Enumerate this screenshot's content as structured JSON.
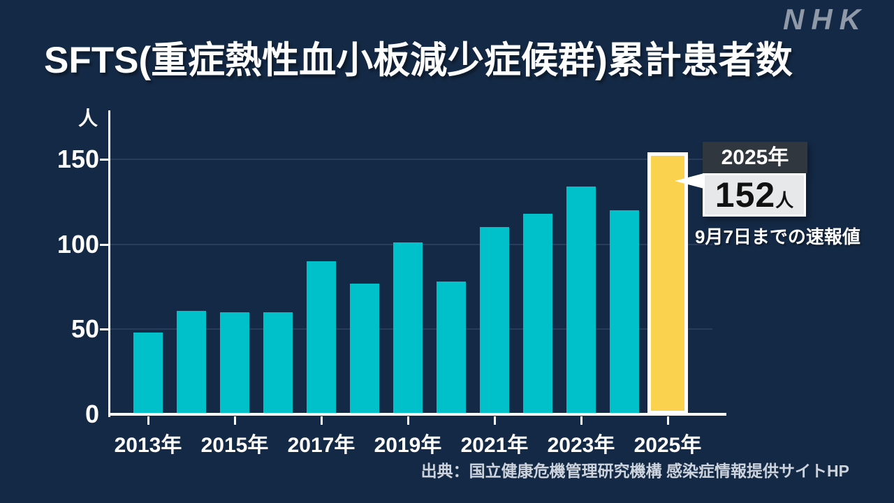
{
  "logo": "NHK",
  "header": {
    "title": "SFTS(重症熱性血小板減少症候群)累計患者数"
  },
  "chart_data": {
    "type": "bar",
    "title": "SFTS(重症熱性血小板減少症候群)累計患者数",
    "unit_label": "人",
    "categories": [
      "2013年",
      "2014年",
      "2015年",
      "2016年",
      "2017年",
      "2018年",
      "2019年",
      "2020年",
      "2021年",
      "2022年",
      "2023年",
      "2024年",
      "2025年"
    ],
    "values": [
      48,
      61,
      60,
      60,
      90,
      77,
      101,
      78,
      110,
      118,
      134,
      120,
      152
    ],
    "x_tick_labels": [
      "2013年",
      "2015年",
      "2017年",
      "2019年",
      "2021年",
      "2023年",
      "2025年"
    ],
    "y_ticks": [
      0,
      50,
      100,
      150
    ],
    "ylim": [
      0,
      175
    ],
    "grid": true,
    "legend": "none",
    "highlight_index": 12,
    "colors": {
      "background": "#142945",
      "bar": "#00c0c9",
      "highlight_bar": "#fbd24e",
      "highlight_border": "#ffffff",
      "gridline": "#2a3c5c",
      "axis": "#ffffff",
      "text": "#ffffff"
    }
  },
  "callout": {
    "year_label": "2025年",
    "value": "152",
    "unit": "人",
    "note": "9月7日までの速報値"
  },
  "source": "出典：国立健康危機管理研究機構 感染症情報提供サイトHP"
}
